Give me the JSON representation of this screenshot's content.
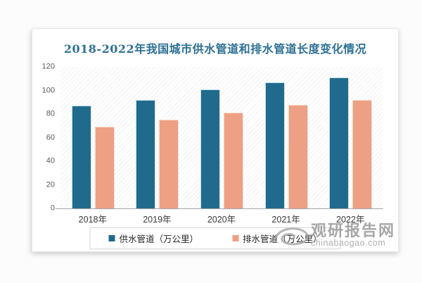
{
  "title": {
    "text": "2018-2022年我国城市供水管道和排水管道长度变化情况",
    "color": "#2D7095"
  },
  "chart_data": {
    "type": "bar",
    "title": "2018-2022年我国城市供水管道和排水管道长度变化情况",
    "categories": [
      "2018年",
      "2019年",
      "2020年",
      "2021年",
      "2022年"
    ],
    "series": [
      {
        "key": "supply-pipeline",
        "name": "供水管道（万公里）",
        "color": "#206B8D",
        "highlight": "#BEDDE9",
        "values": [
          87,
          92,
          101,
          107,
          111
        ]
      },
      {
        "key": "drainage-pipeline",
        "name": "排水管道（万公里）",
        "color": "#EDA083",
        "highlight": "#F8D8C5",
        "values": [
          69,
          75,
          81,
          88,
          92
        ]
      }
    ],
    "ylim": [
      0,
      120
    ],
    "yticks": [
      0,
      20,
      40,
      60,
      80,
      100,
      120
    ],
    "xlabel": "",
    "ylabel": "",
    "grid": false,
    "legend_position": "bottom"
  },
  "watermark": {
    "brand": "观研报告网",
    "domain": "chinabaogao.com",
    "logo": "eye-swirl-icon"
  }
}
